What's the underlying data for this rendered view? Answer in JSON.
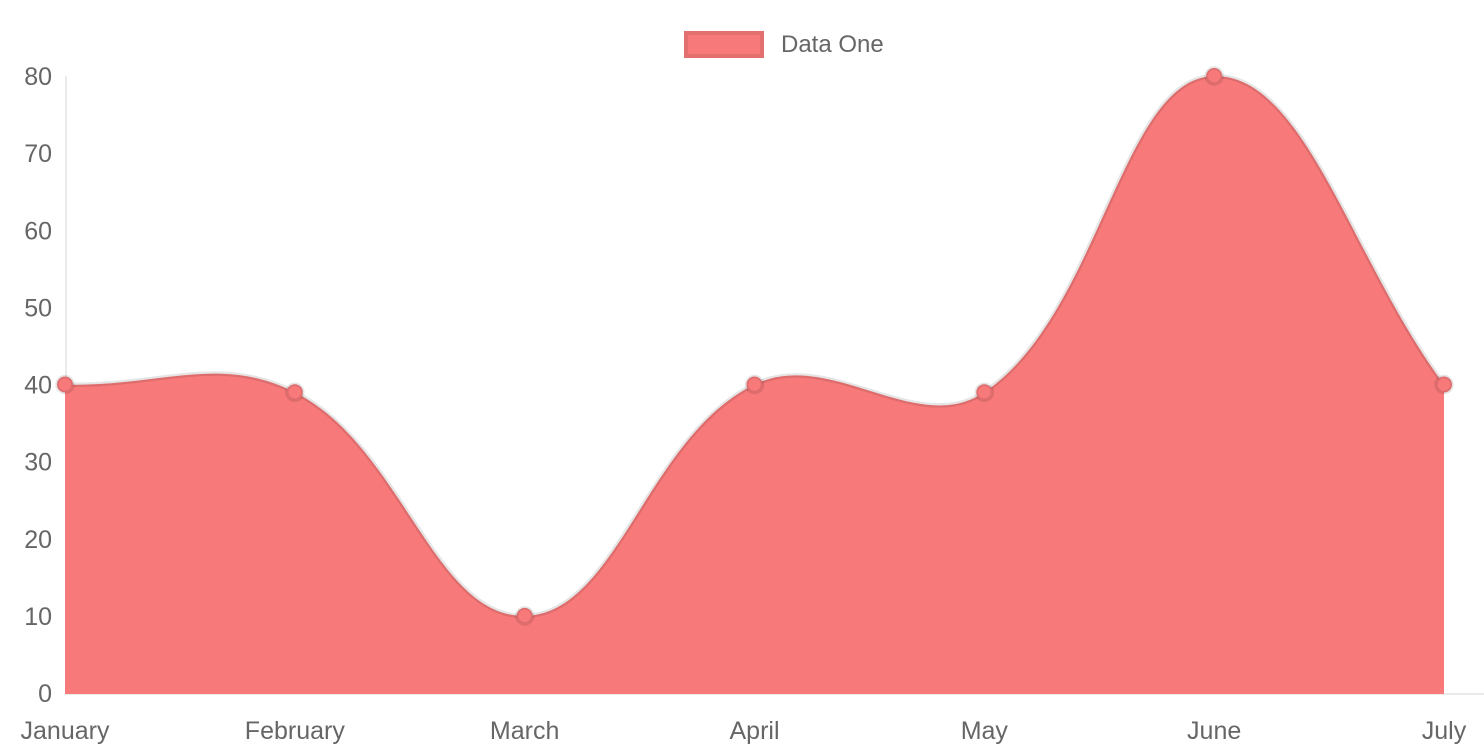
{
  "chart_data": {
    "type": "area",
    "categories": [
      "January",
      "February",
      "March",
      "April",
      "May",
      "June",
      "July"
    ],
    "series": [
      {
        "name": "Data One",
        "values": [
          40,
          39,
          10,
          40,
          39,
          80,
          40
        ]
      }
    ],
    "title": "",
    "xlabel": "",
    "ylabel": "",
    "ylim": [
      0,
      80
    ],
    "yticks": [
      0,
      10,
      20,
      30,
      40,
      50,
      60,
      70,
      80
    ],
    "grid": false,
    "legend_position": "top-center",
    "curve_tension": 0.4,
    "colors": {
      "fill": "#f87979",
      "line": "rgba(0,0,0,0.1)",
      "point_fill": "#f87979",
      "point_border": "rgba(0,0,0,0.1)",
      "axis_line": "rgba(0,0,0,0.08)",
      "tick_text": "#666666",
      "background": "#ffffff"
    }
  },
  "legend": {
    "items": [
      {
        "label": "Data One",
        "color": "#f87979"
      }
    ]
  }
}
